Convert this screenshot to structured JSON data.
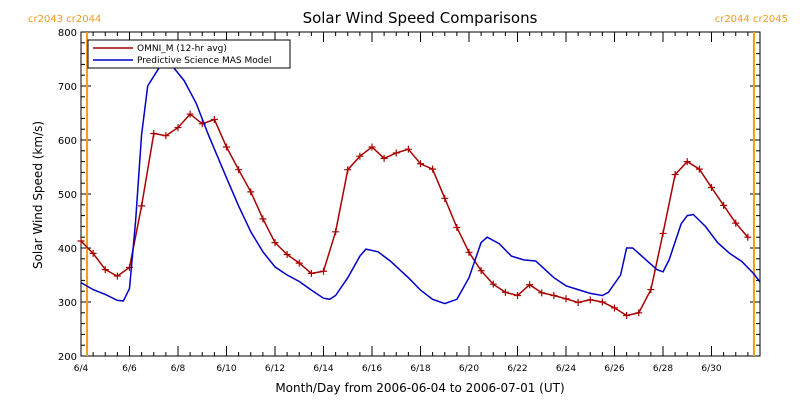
{
  "chart_data": {
    "type": "line",
    "title": "Solar Wind Speed Comparisons",
    "xlabel": "Month/Day from 2006-06-04 to 2006-07-01 (UT)",
    "ylabel": "Solar Wind Speed (km/s)",
    "xlim": [
      "2006-06-04",
      "2006-07-02"
    ],
    "ylim": [
      200,
      800
    ],
    "x_tick_labels": [
      "6/4",
      "6/6",
      "6/8",
      "6/10",
      "6/12",
      "6/14",
      "6/16",
      "6/18",
      "6/20",
      "6/22",
      "6/24",
      "6/26",
      "6/28",
      "6/30"
    ],
    "x_ticks": [
      "2006-06-04",
      "2006-06-06",
      "2006-06-08",
      "2006-06-10",
      "2006-06-12",
      "2006-06-14",
      "2006-06-16",
      "2006-06-18",
      "2006-06-20",
      "2006-06-22",
      "2006-06-24",
      "2006-06-26",
      "2006-06-28",
      "2006-06-30"
    ],
    "y_ticks": [
      200,
      300,
      400,
      500,
      600,
      700,
      800
    ],
    "legend_position": "top-left",
    "carrington_markers": [
      {
        "time": "2006-06-04 06:00",
        "left_label": "cr2043",
        "right_label": "cr2044",
        "color": "#f39b1c"
      },
      {
        "time": "2006-07-01 18:00",
        "left_label": "cr2044",
        "right_label": "cr2045",
        "color": "#f39b1c"
      }
    ],
    "series": [
      {
        "name": "OMNI_M (12-hr avg)",
        "color": "#a80000",
        "marker": "plus",
        "points": [
          [
            "2006-06-04 00:00",
            413
          ],
          [
            "2006-06-04 12:00",
            390
          ],
          [
            "2006-06-05 00:00",
            360
          ],
          [
            "2006-06-05 12:00",
            348
          ],
          [
            "2006-06-06 00:00",
            364
          ],
          [
            "2006-06-06 12:00",
            478
          ],
          [
            "2006-06-07 00:00",
            612
          ],
          [
            "2006-06-07 12:00",
            608
          ],
          [
            "2006-06-08 00:00",
            623
          ],
          [
            "2006-06-08 12:00",
            648
          ],
          [
            "2006-06-09 00:00",
            630
          ],
          [
            "2006-06-09 12:00",
            638
          ],
          [
            "2006-06-10 00:00",
            587
          ],
          [
            "2006-06-10 12:00",
            545
          ],
          [
            "2006-06-11 00:00",
            504
          ],
          [
            "2006-06-11 12:00",
            454
          ],
          [
            "2006-06-12 00:00",
            410
          ],
          [
            "2006-06-12 12:00",
            388
          ],
          [
            "2006-06-13 00:00",
            372
          ],
          [
            "2006-06-13 12:00",
            353
          ],
          [
            "2006-06-14 00:00",
            357
          ],
          [
            "2006-06-14 12:00",
            430
          ],
          [
            "2006-06-15 00:00",
            545
          ],
          [
            "2006-06-15 12:00",
            570
          ],
          [
            "2006-06-16 00:00",
            587
          ],
          [
            "2006-06-16 12:00",
            566
          ],
          [
            "2006-06-17 00:00",
            576
          ],
          [
            "2006-06-17 12:00",
            583
          ],
          [
            "2006-06-18 00:00",
            556
          ],
          [
            "2006-06-18 12:00",
            546
          ],
          [
            "2006-06-19 00:00",
            492
          ],
          [
            "2006-06-19 12:00",
            438
          ],
          [
            "2006-06-20 00:00",
            392
          ],
          [
            "2006-06-20 12:00",
            358
          ],
          [
            "2006-06-21 00:00",
            333
          ],
          [
            "2006-06-21 12:00",
            318
          ],
          [
            "2006-06-22 00:00",
            312
          ],
          [
            "2006-06-22 12:00",
            332
          ],
          [
            "2006-06-23 00:00",
            317
          ],
          [
            "2006-06-23 12:00",
            312
          ],
          [
            "2006-06-24 00:00",
            306
          ],
          [
            "2006-06-24 12:00",
            299
          ],
          [
            "2006-06-25 00:00",
            304
          ],
          [
            "2006-06-25 12:00",
            300
          ],
          [
            "2006-06-26 00:00",
            289
          ],
          [
            "2006-06-26 12:00",
            275
          ],
          [
            "2006-06-27 00:00",
            280
          ],
          [
            "2006-06-27 12:00",
            323
          ],
          [
            "2006-06-28 00:00",
            427
          ],
          [
            "2006-06-28 12:00",
            536
          ],
          [
            "2006-06-29 00:00",
            560
          ],
          [
            "2006-06-29 12:00",
            546
          ],
          [
            "2006-06-30 00:00",
            512
          ],
          [
            "2006-06-30 12:00",
            479
          ],
          [
            "2006-07-01 00:00",
            446
          ],
          [
            "2006-07-01 12:00",
            420
          ]
        ]
      },
      {
        "name": "Predictive Science MAS Model",
        "color": "#0000c8",
        "marker": "none",
        "points": [
          [
            "2006-06-04 00:00",
            336
          ],
          [
            "2006-06-04 12:00",
            323
          ],
          [
            "2006-06-05 00:00",
            314
          ],
          [
            "2006-06-05 12:00",
            303
          ],
          [
            "2006-06-05 18:00",
            302
          ],
          [
            "2006-06-06 00:00",
            325
          ],
          [
            "2006-06-06 06:00",
            450
          ],
          [
            "2006-06-06 12:00",
            610
          ],
          [
            "2006-06-06 18:00",
            700
          ],
          [
            "2006-06-07 06:00",
            736
          ],
          [
            "2006-06-07 18:00",
            738
          ],
          [
            "2006-06-08 06:00",
            710
          ],
          [
            "2006-06-08 18:00",
            668
          ],
          [
            "2006-06-09 06:00",
            610
          ],
          [
            "2006-06-10 00:00",
            530
          ],
          [
            "2006-06-10 12:00",
            478
          ],
          [
            "2006-06-11 00:00",
            430
          ],
          [
            "2006-06-11 12:00",
            393
          ],
          [
            "2006-06-12 00:00",
            365
          ],
          [
            "2006-06-12 12:00",
            350
          ],
          [
            "2006-06-13 00:00",
            338
          ],
          [
            "2006-06-13 12:00",
            322
          ],
          [
            "2006-06-14 00:00",
            307
          ],
          [
            "2006-06-14 06:00",
            305
          ],
          [
            "2006-06-14 12:00",
            312
          ],
          [
            "2006-06-15 00:00",
            345
          ],
          [
            "2006-06-15 12:00",
            385
          ],
          [
            "2006-06-15 18:00",
            398
          ],
          [
            "2006-06-16 06:00",
            393
          ],
          [
            "2006-06-16 18:00",
            376
          ],
          [
            "2006-06-17 12:00",
            345
          ],
          [
            "2006-06-18 00:00",
            322
          ],
          [
            "2006-06-18 12:00",
            305
          ],
          [
            "2006-06-19 00:00",
            297
          ],
          [
            "2006-06-19 12:00",
            305
          ],
          [
            "2006-06-20 00:00",
            345
          ],
          [
            "2006-06-20 12:00",
            410
          ],
          [
            "2006-06-20 18:00",
            420
          ],
          [
            "2006-06-21 06:00",
            408
          ],
          [
            "2006-06-21 18:00",
            385
          ],
          [
            "2006-06-22 06:00",
            378
          ],
          [
            "2006-06-22 18:00",
            376
          ],
          [
            "2006-06-23 12:00",
            345
          ],
          [
            "2006-06-24 00:00",
            330
          ],
          [
            "2006-06-24 12:00",
            323
          ],
          [
            "2006-06-25 00:00",
            316
          ],
          [
            "2006-06-25 12:00",
            312
          ],
          [
            "2006-06-25 18:00",
            318
          ],
          [
            "2006-06-26 06:00",
            350
          ],
          [
            "2006-06-26 12:00",
            400
          ],
          [
            "2006-06-26 18:00",
            400
          ],
          [
            "2006-06-27 06:00",
            380
          ],
          [
            "2006-06-27 18:00",
            360
          ],
          [
            "2006-06-28 00:00",
            356
          ],
          [
            "2006-06-28 06:00",
            378
          ],
          [
            "2006-06-28 18:00",
            445
          ],
          [
            "2006-06-29 00:00",
            460
          ],
          [
            "2006-06-29 06:00",
            462
          ],
          [
            "2006-06-29 18:00",
            440
          ],
          [
            "2006-06-30 06:00",
            410
          ],
          [
            "2006-06-30 18:00",
            390
          ],
          [
            "2006-07-01 06:00",
            375
          ],
          [
            "2006-07-01 18:00",
            352
          ],
          [
            "2006-07-02 00:00",
            337
          ]
        ]
      }
    ]
  }
}
